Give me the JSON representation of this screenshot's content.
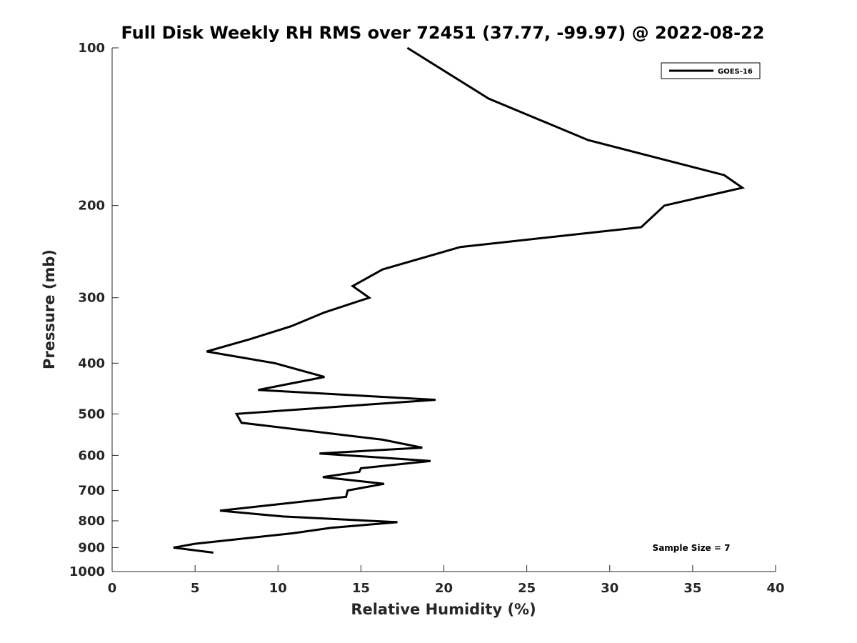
{
  "chart_data": {
    "type": "line",
    "title": "Full Disk Weekly RH RMS over 72451 (37.77, -99.97) @ 2022-08-22",
    "xlabel": "Relative Humidity (%)",
    "ylabel": "Pressure (mb)",
    "xlim": [
      0,
      40
    ],
    "ylim": [
      100,
      1000
    ],
    "y_scale": "log",
    "y_direction": "reversed",
    "x_ticks": [
      0,
      5,
      10,
      15,
      20,
      25,
      30,
      35,
      40
    ],
    "y_ticks": [
      100,
      200,
      300,
      400,
      500,
      600,
      700,
      800,
      900,
      1000
    ],
    "grid": false,
    "legend_position": "top-right",
    "series": [
      {
        "name": "GOES-16",
        "color": "#000000",
        "points": [
          [
            17.8,
            100
          ],
          [
            22.7,
            125
          ],
          [
            28.7,
            150
          ],
          [
            36.9,
            175
          ],
          [
            38.0,
            185
          ],
          [
            33.3,
            200
          ],
          [
            31.9,
            220
          ],
          [
            21.0,
            240
          ],
          [
            16.3,
            265
          ],
          [
            14.5,
            285
          ],
          [
            15.5,
            300
          ],
          [
            12.8,
            320
          ],
          [
            10.8,
            340
          ],
          [
            8.3,
            360
          ],
          [
            5.7,
            380
          ],
          [
            9.8,
            400
          ],
          [
            12.8,
            425
          ],
          [
            8.8,
            450
          ],
          [
            19.5,
            470
          ],
          [
            7.5,
            500
          ],
          [
            7.8,
            520
          ],
          [
            16.3,
            560
          ],
          [
            18.7,
            580
          ],
          [
            12.5,
            595
          ],
          [
            19.2,
            615
          ],
          [
            15.0,
            635
          ],
          [
            14.9,
            645
          ],
          [
            12.7,
            660
          ],
          [
            16.4,
            680
          ],
          [
            14.2,
            700
          ],
          [
            14.1,
            720
          ],
          [
            6.5,
            765
          ],
          [
            10.3,
            785
          ],
          [
            17.2,
            805
          ],
          [
            13.2,
            825
          ],
          [
            10.9,
            845
          ],
          [
            5.0,
            885
          ],
          [
            3.7,
            900
          ],
          [
            6.1,
            920
          ]
        ]
      }
    ],
    "annotation": "Sample Size = 7"
  }
}
